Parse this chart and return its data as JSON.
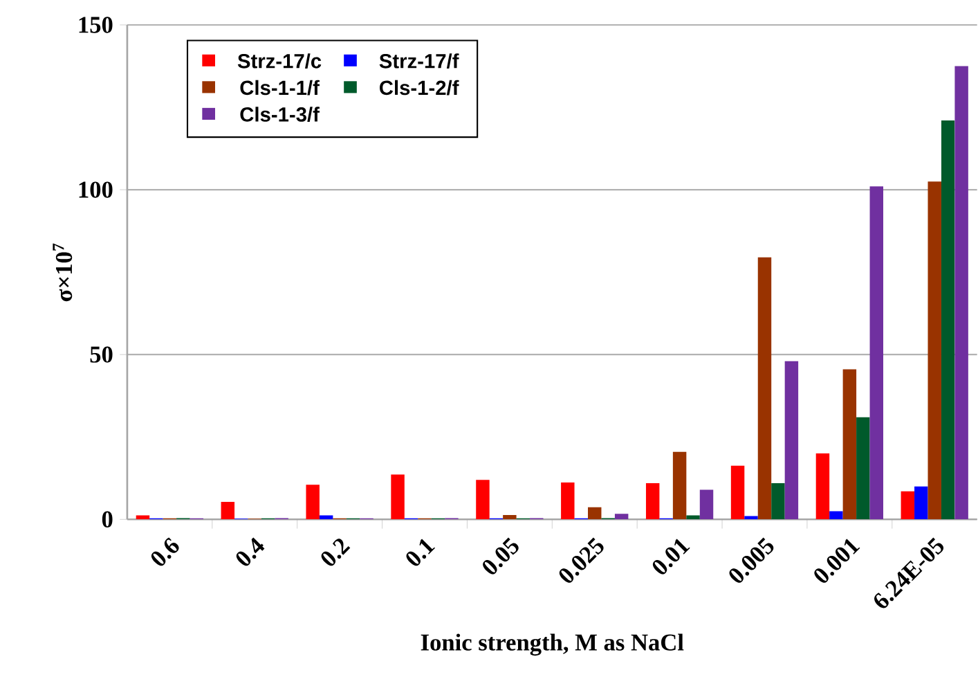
{
  "chart_data": {
    "type": "bar",
    "xlabel": "Ionic strength, M as NaCl",
    "ylabel": "σ×10$^{7}$",
    "categories": [
      "0.6",
      "0.4",
      "0.2",
      "0.1",
      "0.05",
      "0.025",
      "0.01",
      "0.005",
      "0.001",
      "6.24E-05"
    ],
    "series": [
      {
        "name": "Strz-17/c",
        "color": "#ff0000",
        "values": [
          1.2,
          5.3,
          10.5,
          13.6,
          12.0,
          11.2,
          11.0,
          16.3,
          20.0,
          8.5
        ]
      },
      {
        "name": "Strz-17/f",
        "color": "#0000ff",
        "values": [
          0.3,
          0.2,
          1.2,
          0.3,
          0.3,
          0.3,
          0.3,
          1.0,
          2.5,
          10.0
        ]
      },
      {
        "name": "Cls-1-1/f",
        "color": "#993300",
        "values": [
          0.3,
          0.2,
          0.3,
          0.3,
          1.3,
          3.7,
          20.5,
          79.5,
          45.5,
          102.5
        ]
      },
      {
        "name": "Cls-1-2/f",
        "color": "#005a2b",
        "values": [
          0.4,
          0.3,
          0.3,
          0.3,
          0.3,
          0.4,
          1.2,
          11.0,
          31.0,
          121.0
        ]
      },
      {
        "name": "Cls-1-3/f",
        "color": "#7030a0",
        "values": [
          0.3,
          0.4,
          0.3,
          0.4,
          0.4,
          1.7,
          9.0,
          48.0,
          101.0,
          137.5
        ]
      }
    ],
    "ylim": [
      0,
      150
    ],
    "yticks": [
      0,
      50,
      100,
      150
    ],
    "grid": "y",
    "legend": "top left"
  }
}
